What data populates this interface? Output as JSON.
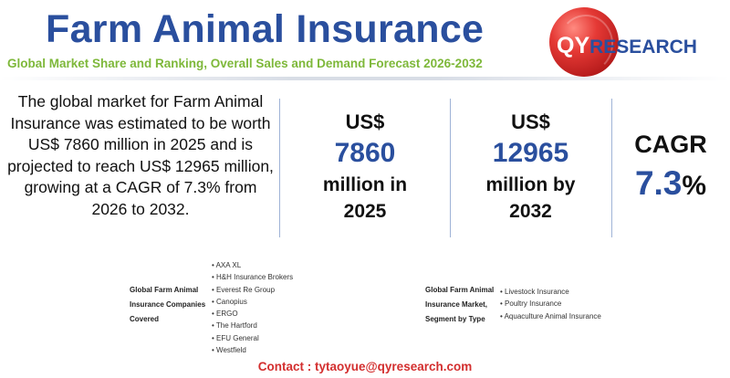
{
  "header": {
    "title": "Farm Animal Insurance",
    "subtitle": "Global Market Share and Ranking, Overall Sales and Demand Forecast 2026-2032"
  },
  "logo": {
    "name": "QYRESEARCH",
    "prefix": "QY",
    "suffix": "RESEARCH",
    "colors": {
      "globe": "#e53935",
      "text": "#2a4f9e"
    }
  },
  "description": "The global market for Farm Animal Insurance was estimated to be worth US$ 7860 million in 2025 and is projected to reach US$ 12965 million, growing at a CAGR of 7.3% from 2026 to 2032.",
  "stats": {
    "current": {
      "currency": "US$",
      "value": "7860",
      "unit": "million in",
      "year": "2025"
    },
    "forecast": {
      "currency": "US$",
      "value": "12965",
      "unit": "million by",
      "year": "2032"
    },
    "cagr": {
      "label": "CAGR",
      "value": "7.3",
      "symbol": "%"
    }
  },
  "companies": {
    "label": [
      "Global Farm Animal",
      "Insurance Companies",
      "Covered"
    ],
    "items": [
      "AXA XL",
      "H&H Insurance Brokers",
      "Everest Re Group",
      "Canopius",
      "ERGO",
      "The Hartford",
      "EFU General",
      "Westfield"
    ]
  },
  "segments": {
    "label": [
      "Global Farm Animal",
      "Insurance Market,",
      "Segment by Type"
    ],
    "items": [
      "Livestock Insurance",
      "Poultry Insurance",
      "Aquaculture Animal Insurance"
    ]
  },
  "contact": "Contact : tytaoyue@qyresearch.com",
  "colors": {
    "title": "#2a4f9e",
    "subtitle": "#7eb83a",
    "contact": "#d32f2f"
  }
}
